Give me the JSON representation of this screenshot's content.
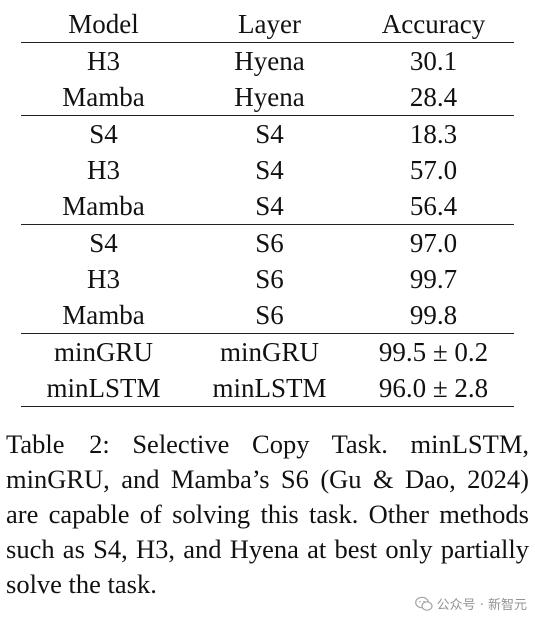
{
  "table": {
    "headers": [
      "Model",
      "Layer",
      "Accuracy"
    ],
    "groups": [
      [
        {
          "model": "H3",
          "layer": "Hyena",
          "accuracy": "30.1"
        },
        {
          "model": "Mamba",
          "layer": "Hyena",
          "accuracy": "28.4"
        }
      ],
      [
        {
          "model": "S4",
          "layer": "S4",
          "accuracy": "18.3"
        },
        {
          "model": "H3",
          "layer": "S4",
          "accuracy": "57.0"
        },
        {
          "model": "Mamba",
          "layer": "S4",
          "accuracy": "56.4"
        }
      ],
      [
        {
          "model": "S4",
          "layer": "S6",
          "accuracy": "97.0"
        },
        {
          "model": "H3",
          "layer": "S6",
          "accuracy": "99.7"
        },
        {
          "model": "Mamba",
          "layer": "S6",
          "accuracy": "99.8"
        }
      ],
      [
        {
          "model": "minGRU",
          "layer": "minGRU",
          "accuracy": "99.5 ± 0.2"
        },
        {
          "model": "minLSTM",
          "layer": "minLSTM",
          "accuracy": "96.0 ± 2.8"
        }
      ]
    ]
  },
  "caption": {
    "label": "Table 2:",
    "text": "Selective Copy Task. minLSTM, minGRU, and Mamba’s S6 (Gu & Dao, 2024) are capable of solving this task. Other methods such as S4, H3, and Hyena at best only partially solve the task."
  },
  "watermark": {
    "text": "公众号 · 新智元",
    "icon": "wechat-icon"
  }
}
